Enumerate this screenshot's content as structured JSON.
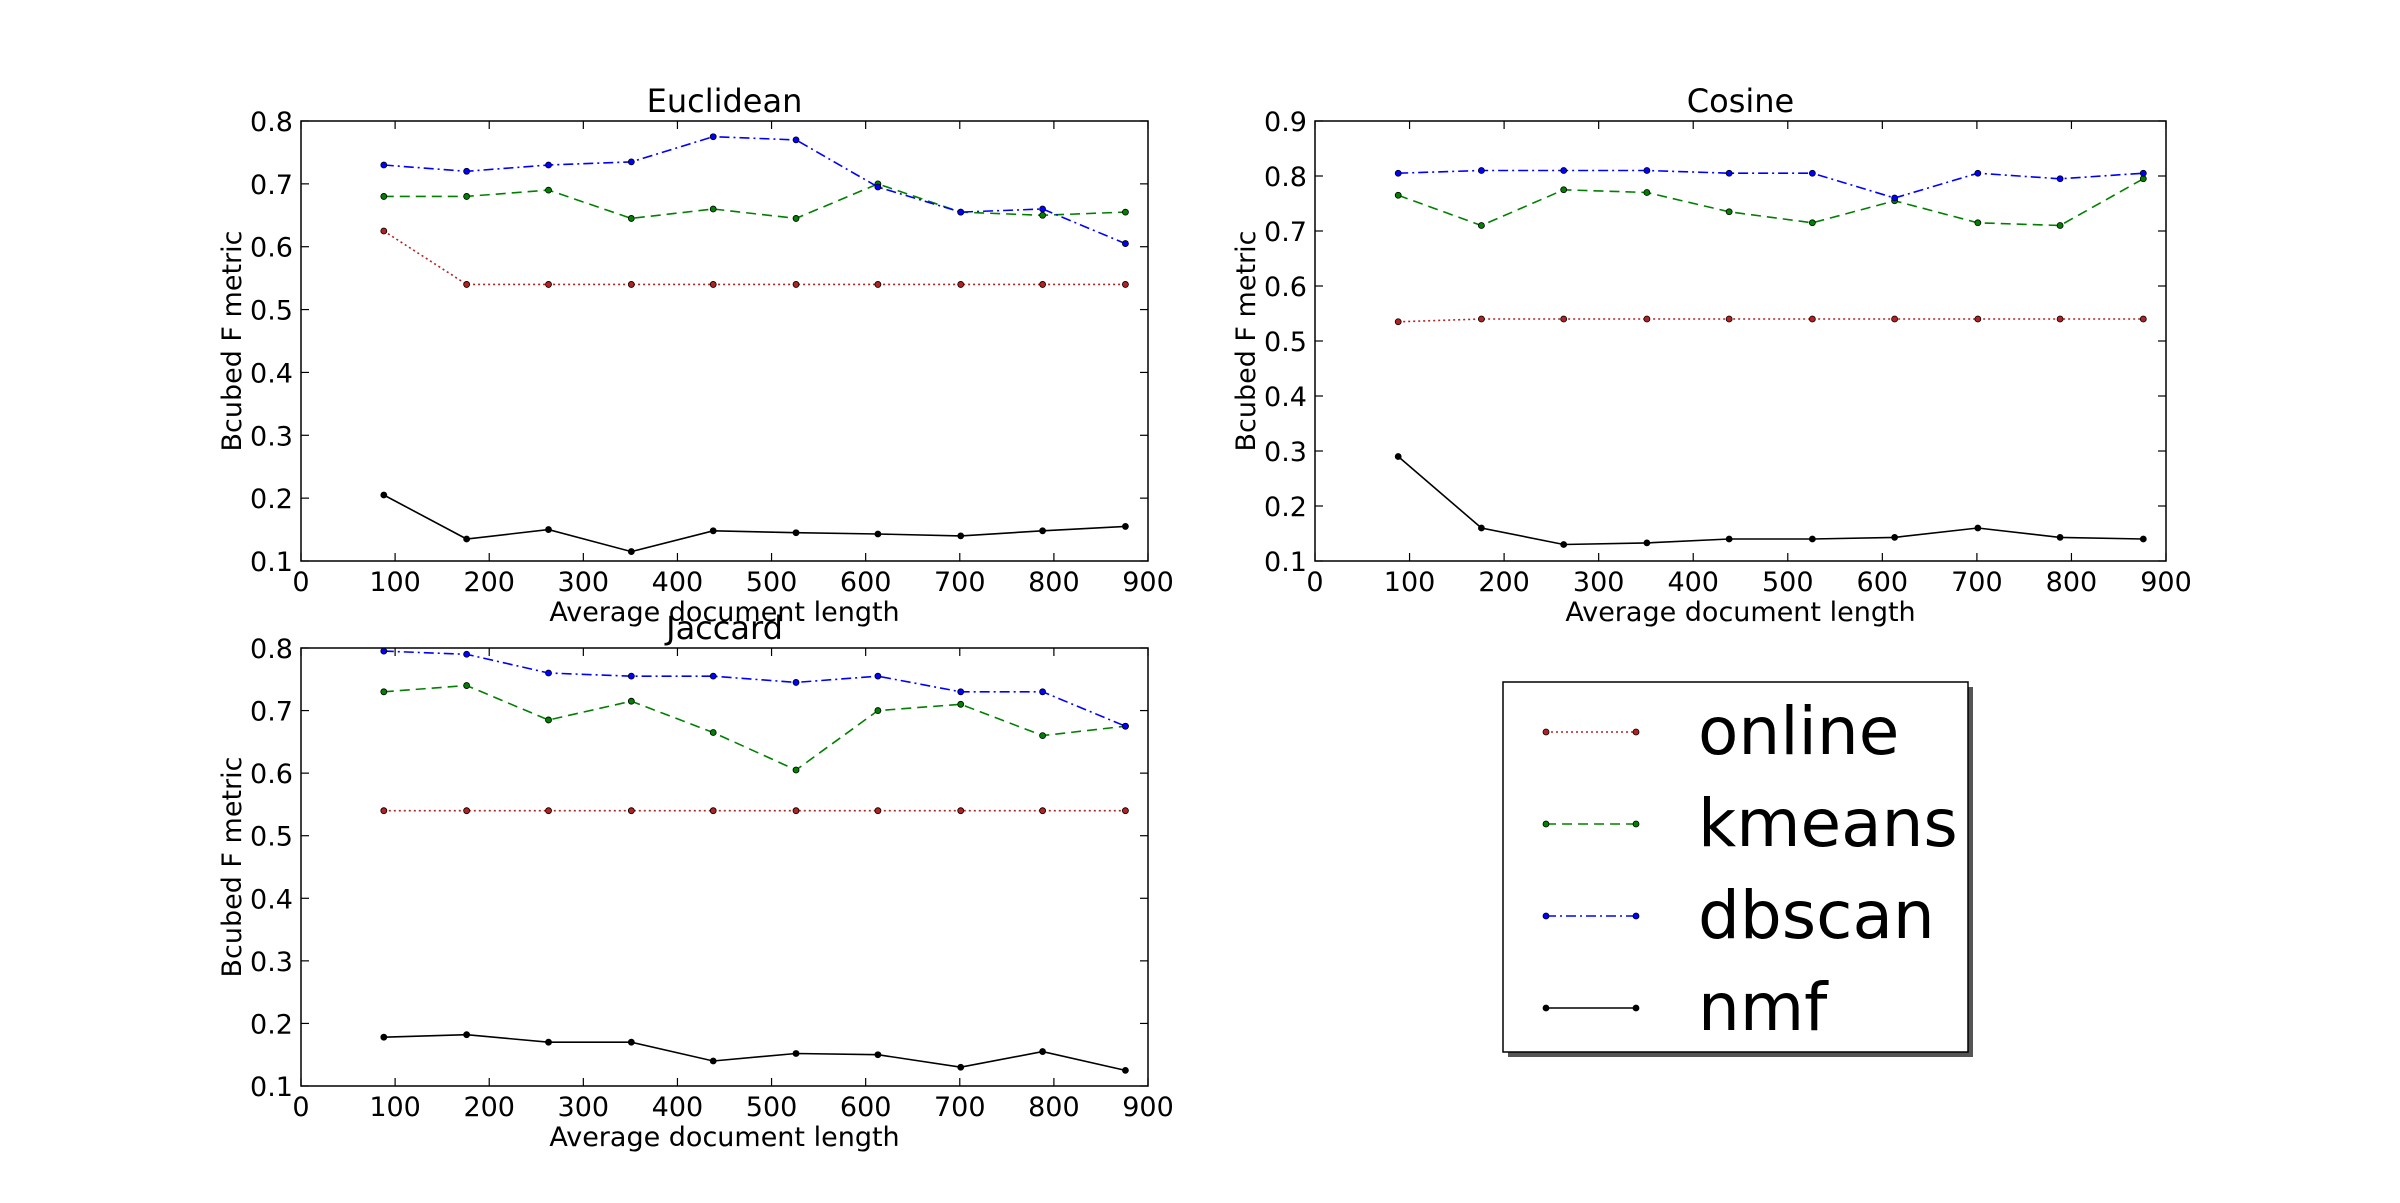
{
  "legend": {
    "placement": "lower-right panel",
    "entries": [
      {
        "name": "online",
        "color": "#b22222",
        "linestyle": "dotted"
      },
      {
        "name": "kmeans",
        "color": "#008000",
        "linestyle": "dashed"
      },
      {
        "name": "dbscan",
        "color": "#0000ff",
        "linestyle": "dashdot"
      },
      {
        "name": "nmf",
        "color": "#000000",
        "linestyle": "solid"
      }
    ]
  },
  "chart_data": [
    {
      "type": "line",
      "title": "Euclidean",
      "xlabel": "Average document length",
      "ylabel": "Bcubed F metric",
      "xlim": [
        0,
        900
      ],
      "ylim": [
        0.1,
        0.8
      ],
      "xticks": [
        "0",
        "100",
        "200",
        "300",
        "400",
        "500",
        "600",
        "700",
        "800",
        "900"
      ],
      "yticks": [
        "0.1",
        "0.2",
        "0.3",
        "0.4",
        "0.5",
        "0.6",
        "0.7",
        "0.8"
      ],
      "grid": false,
      "x": [
        88,
        176,
        263,
        351,
        438,
        526,
        613,
        701,
        788,
        876
      ],
      "series": [
        {
          "name": "online",
          "values": [
            0.625,
            0.54,
            0.54,
            0.54,
            0.54,
            0.54,
            0.54,
            0.54,
            0.54,
            0.54
          ]
        },
        {
          "name": "kmeans",
          "values": [
            0.68,
            0.68,
            0.69,
            0.645,
            0.66,
            0.645,
            0.7,
            0.655,
            0.65,
            0.655
          ]
        },
        {
          "name": "dbscan",
          "values": [
            0.73,
            0.72,
            0.73,
            0.735,
            0.775,
            0.77,
            0.695,
            0.655,
            0.66,
            0.605
          ]
        },
        {
          "name": "nmf",
          "values": [
            0.205,
            0.135,
            0.15,
            0.115,
            0.148,
            0.145,
            0.143,
            0.14,
            0.148,
            0.155
          ]
        }
      ]
    },
    {
      "type": "line",
      "title": "Cosine",
      "xlabel": "Average document length",
      "ylabel": "Bcubed F metric",
      "xlim": [
        0,
        900
      ],
      "ylim": [
        0.1,
        0.9
      ],
      "xticks": [
        "0",
        "100",
        "200",
        "300",
        "400",
        "500",
        "600",
        "700",
        "800",
        "900"
      ],
      "yticks": [
        "0.1",
        "0.2",
        "0.3",
        "0.4",
        "0.5",
        "0.6",
        "0.7",
        "0.8",
        "0.9"
      ],
      "grid": false,
      "x": [
        88,
        176,
        263,
        351,
        438,
        526,
        613,
        701,
        788,
        876
      ],
      "series": [
        {
          "name": "online",
          "values": [
            0.535,
            0.54,
            0.54,
            0.54,
            0.54,
            0.54,
            0.54,
            0.54,
            0.54,
            0.54
          ]
        },
        {
          "name": "kmeans",
          "values": [
            0.765,
            0.71,
            0.775,
            0.77,
            0.735,
            0.715,
            0.755,
            0.715,
            0.71,
            0.795
          ]
        },
        {
          "name": "dbscan",
          "values": [
            0.805,
            0.81,
            0.81,
            0.81,
            0.805,
            0.805,
            0.76,
            0.805,
            0.795,
            0.805
          ]
        },
        {
          "name": "nmf",
          "values": [
            0.29,
            0.16,
            0.13,
            0.133,
            0.14,
            0.14,
            0.143,
            0.16,
            0.143,
            0.14
          ]
        }
      ]
    },
    {
      "type": "line",
      "title": "Jaccard",
      "xlabel": "Average document length",
      "ylabel": "Bcubed F metric",
      "xlim": [
        0,
        900
      ],
      "ylim": [
        0.1,
        0.8
      ],
      "xticks": [
        "0",
        "100",
        "200",
        "300",
        "400",
        "500",
        "600",
        "700",
        "800",
        "900"
      ],
      "yticks": [
        "0.1",
        "0.2",
        "0.3",
        "0.4",
        "0.5",
        "0.6",
        "0.7",
        "0.8"
      ],
      "grid": false,
      "x": [
        88,
        176,
        263,
        351,
        438,
        526,
        613,
        701,
        788,
        876
      ],
      "series": [
        {
          "name": "online",
          "values": [
            0.54,
            0.54,
            0.54,
            0.54,
            0.54,
            0.54,
            0.54,
            0.54,
            0.54,
            0.54
          ]
        },
        {
          "name": "kmeans",
          "values": [
            0.73,
            0.74,
            0.685,
            0.715,
            0.665,
            0.605,
            0.7,
            0.71,
            0.66,
            0.675
          ]
        },
        {
          "name": "dbscan",
          "values": [
            0.795,
            0.79,
            0.76,
            0.755,
            0.755,
            0.745,
            0.755,
            0.73,
            0.73,
            0.675
          ]
        },
        {
          "name": "nmf",
          "values": [
            0.178,
            0.182,
            0.17,
            0.17,
            0.14,
            0.152,
            0.15,
            0.13,
            0.155,
            0.125
          ]
        }
      ]
    }
  ]
}
